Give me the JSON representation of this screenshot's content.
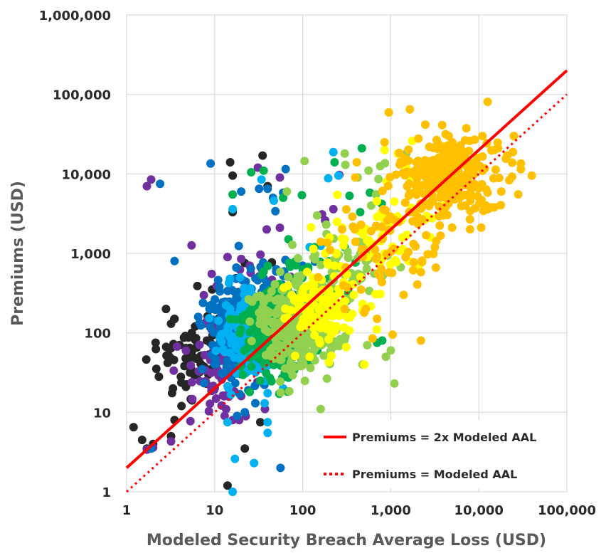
{
  "chart_data": {
    "type": "scatter",
    "title": "",
    "xlabel": "Modeled Security Breach Average Loss (USD)",
    "ylabel": "Premiums (USD)",
    "xscale": "log",
    "yscale": "log",
    "xlim": [
      1,
      100000
    ],
    "ylim": [
      1,
      1000000
    ],
    "grid": true,
    "legend_position": "bottom-right",
    "x_ticks": [
      1,
      10,
      100,
      1000,
      10000,
      100000
    ],
    "x_tick_labels": [
      "1",
      "10",
      "100",
      "1,000",
      "10,000",
      "100,000"
    ],
    "y_ticks": [
      1,
      10,
      100,
      1000,
      10000,
      100000,
      1000000
    ],
    "y_tick_labels": [
      "1",
      "10",
      "100",
      "1,000",
      "10,000",
      "100,000",
      "1,000,000"
    ],
    "reference_lines": [
      {
        "label": "Premiums = 2x Modeled AAL",
        "multiplier": 2,
        "style": "solid",
        "color": "#ff0000"
      },
      {
        "label": "Premiums = Modeled AAL",
        "multiplier": 1,
        "style": "dotted",
        "color": "#ff0000"
      }
    ],
    "series": [
      {
        "color": "#262626",
        "clusters": [
          {
            "cx": 6,
            "cy": 45,
            "sx": 0.25,
            "sy": 0.22,
            "n": 70
          },
          {
            "cx": 18,
            "cy": 280,
            "sx": 0.3,
            "sy": 0.25,
            "n": 14
          }
        ],
        "points": [
          [
            1.2,
            6.5
          ],
          [
            1.5,
            4.5
          ],
          [
            1.7,
            3.5
          ],
          [
            2.0,
            4.0
          ],
          [
            3.2,
            5.0
          ],
          [
            3.5,
            8.0
          ],
          [
            4.2,
            12
          ],
          [
            2.8,
            200
          ],
          [
            3.2,
            130
          ],
          [
            3.5,
            150
          ],
          [
            5.5,
            100
          ],
          [
            15,
            14000
          ],
          [
            35,
            17000
          ],
          [
            16,
            9500
          ],
          [
            16,
            3300
          ],
          [
            40,
            7000
          ],
          [
            14,
            1.2
          ],
          [
            22,
            3.5
          ],
          [
            33,
            7.5
          ],
          [
            8.5,
            30
          ],
          [
            10,
            20
          ],
          [
            6,
            120
          ]
        ]
      },
      {
        "color": "#7030a0",
        "clusters": [
          {
            "cx": 11,
            "cy": 35,
            "sx": 0.17,
            "sy": 0.3,
            "n": 70
          },
          {
            "cx": 40,
            "cy": 450,
            "sx": 0.35,
            "sy": 0.25,
            "n": 16
          }
        ],
        "points": [
          [
            1.7,
            7000
          ],
          [
            1.9,
            8500
          ],
          [
            1.7,
            3.4
          ],
          [
            2.0,
            3.6
          ],
          [
            3.2,
            4.3
          ],
          [
            13,
            9
          ],
          [
            16,
            8
          ],
          [
            19,
            8
          ],
          [
            20,
            16
          ],
          [
            31,
            12000
          ],
          [
            39,
            2000
          ],
          [
            55,
            2100
          ],
          [
            166,
            3100
          ],
          [
            223,
            3600
          ],
          [
            260,
            9700
          ],
          [
            14,
            900
          ],
          [
            25,
            700
          ],
          [
            55,
            9000
          ],
          [
            180,
            2600
          ],
          [
            7.5,
            130
          ],
          [
            20,
            850
          ]
        ]
      },
      {
        "color": "#0070c0",
        "clusters": [
          {
            "cx": 19,
            "cy": 110,
            "sx": 0.18,
            "sy": 0.3,
            "n": 230
          },
          {
            "cx": 42,
            "cy": 420,
            "sx": 0.25,
            "sy": 0.2,
            "n": 30
          }
        ],
        "points": [
          [
            2.4,
            7500
          ],
          [
            3.5,
            800
          ],
          [
            9,
            13500
          ],
          [
            20,
            6000
          ],
          [
            32,
            6500
          ],
          [
            40,
            6500
          ],
          [
            46,
            5000
          ],
          [
            64,
            11500
          ],
          [
            56,
            2.0
          ],
          [
            29,
            13
          ],
          [
            22,
            10
          ],
          [
            18,
            9
          ],
          [
            49,
            3400
          ],
          [
            80,
            300
          ],
          [
            100,
            700
          ],
          [
            1.9,
            3.5
          ],
          [
            60,
            5800
          ]
        ]
      },
      {
        "color": "#00b0f0",
        "clusters": [
          {
            "cx": 24,
            "cy": 95,
            "sx": 0.14,
            "sy": 0.28,
            "n": 170
          }
        ],
        "points": [
          [
            16,
            1.0
          ],
          [
            17,
            2.6
          ],
          [
            28,
            2.3
          ],
          [
            40,
            7.5
          ],
          [
            40,
            5.5
          ],
          [
            16,
            3600
          ],
          [
            34,
            8500
          ],
          [
            160,
            1250
          ],
          [
            223,
            18800
          ],
          [
            195,
            8800
          ],
          [
            255,
            9500
          ],
          [
            14,
            7.5
          ],
          [
            37,
            13
          ],
          [
            60,
            20
          ],
          [
            47,
            4600
          ],
          [
            120,
            1200
          ]
        ]
      },
      {
        "color": "#00b050",
        "clusters": [
          {
            "cx": 50,
            "cy": 110,
            "sx": 0.2,
            "sy": 0.28,
            "n": 300
          },
          {
            "cx": 130,
            "cy": 380,
            "sx": 0.2,
            "sy": 0.2,
            "n": 35
          }
        ],
        "points": [
          [
            16,
            5500
          ],
          [
            26,
            10500
          ],
          [
            36,
            11000
          ],
          [
            60,
            5000
          ],
          [
            69,
            1500
          ],
          [
            98,
            5400
          ],
          [
            136,
            1200
          ],
          [
            230,
            14000
          ],
          [
            340,
            5300
          ],
          [
            470,
            21000
          ],
          [
            580,
            5800
          ],
          [
            700,
            75
          ],
          [
            790,
            4200
          ],
          [
            800,
            80
          ],
          [
            25,
            18
          ],
          [
            33,
            25
          ],
          [
            300,
            1200
          ],
          [
            450,
            3300
          ]
        ]
      },
      {
        "color": "#92d050",
        "clusters": [
          {
            "cx": 90,
            "cy": 130,
            "sx": 0.22,
            "sy": 0.28,
            "n": 330
          },
          {
            "cx": 300,
            "cy": 700,
            "sx": 0.25,
            "sy": 0.25,
            "n": 50
          }
        ],
        "points": [
          [
            66,
            6000
          ],
          [
            105,
            14500
          ],
          [
            146,
            3000
          ],
          [
            185,
            2300
          ],
          [
            300,
            18000
          ],
          [
            305,
            13000
          ],
          [
            450,
            2000
          ],
          [
            600,
            4000
          ],
          [
            680,
            5500
          ],
          [
            725,
            8600
          ],
          [
            760,
            12500
          ],
          [
            860,
            13600
          ],
          [
            900,
            2200
          ],
          [
            1100,
            23
          ],
          [
            1000,
            60
          ],
          [
            880,
            50
          ],
          [
            160,
            11
          ],
          [
            540,
            70
          ],
          [
            2000,
            14000
          ],
          [
            3200,
            12000
          ],
          [
            560,
            11000
          ],
          [
            420,
            9000
          ],
          [
            1500,
            18000
          ],
          [
            250,
            650
          ]
        ]
      },
      {
        "color": "#ffff00",
        "clusters": [
          {
            "cx": 170,
            "cy": 200,
            "sx": 0.2,
            "sy": 0.25,
            "n": 140
          },
          {
            "cx": 700,
            "cy": 1800,
            "sx": 0.3,
            "sy": 0.3,
            "n": 55
          }
        ],
        "points": [
          [
            180,
            1000
          ],
          [
            230,
            700
          ],
          [
            245,
            2500
          ],
          [
            300,
            1500
          ],
          [
            500,
            40
          ],
          [
            780,
            3200
          ],
          [
            850,
            20000
          ],
          [
            1100,
            4500
          ],
          [
            1200,
            18000
          ],
          [
            1500,
            12000
          ],
          [
            1750,
            26000
          ],
          [
            2500,
            11500
          ],
          [
            120,
            50
          ],
          [
            380,
            300
          ],
          [
            1650,
            9000
          ],
          [
            640,
            1300
          ],
          [
            900,
            8000
          ]
        ]
      },
      {
        "color": "#ffc000",
        "clusters": [
          {
            "cx": 4500,
            "cy": 9000,
            "sx": 0.3,
            "sy": 0.26,
            "n": 280
          },
          {
            "cx": 1000,
            "cy": 1100,
            "sx": 0.35,
            "sy": 0.3,
            "n": 55
          }
        ],
        "points": [
          [
            150,
            500
          ],
          [
            160,
            1400
          ],
          [
            205,
            1100
          ],
          [
            280,
            2000
          ],
          [
            300,
            200
          ],
          [
            390,
            2000
          ],
          [
            395,
            9000
          ],
          [
            410,
            14000
          ],
          [
            460,
            350
          ],
          [
            520,
            200
          ],
          [
            620,
            85
          ],
          [
            1050,
            95
          ],
          [
            1400,
            300
          ],
          [
            2200,
            580
          ],
          [
            2200,
            80
          ],
          [
            15000,
            20000
          ],
          [
            25000,
            30000
          ],
          [
            30000,
            13500
          ],
          [
            30000,
            11500
          ],
          [
            40000,
            9500
          ],
          [
            21000,
            17000
          ],
          [
            18000,
            6000
          ],
          [
            12000,
            4000
          ],
          [
            8000,
            4600
          ],
          [
            15000,
            3800
          ],
          [
            11000,
            30000
          ],
          [
            5000,
            25000
          ],
          [
            9000,
            27000
          ],
          [
            500,
            180
          ],
          [
            700,
            150
          ],
          [
            850,
            25000
          ]
        ]
      }
    ],
    "legend": [
      {
        "label": "Premiums = 2x Modeled AAL",
        "style": "solid"
      },
      {
        "label": "Premiums = Modeled AAL",
        "style": "dotted"
      }
    ]
  }
}
